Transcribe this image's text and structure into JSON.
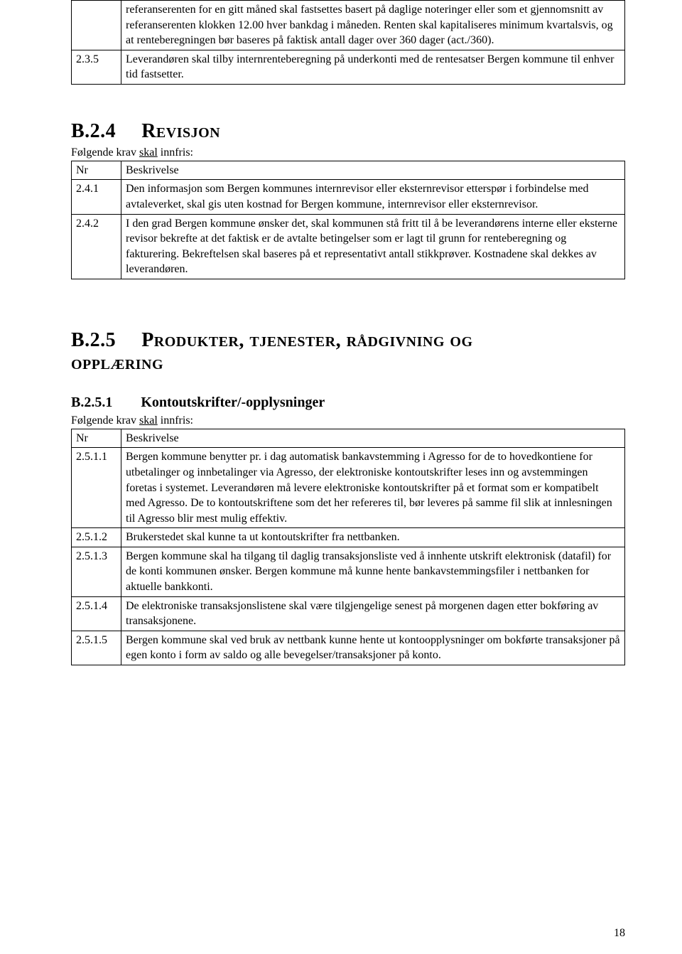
{
  "table1": {
    "rows": [
      {
        "nr": "",
        "desc": "referanserenten for en gitt måned skal fastsettes basert på daglige noteringer eller som et gjennomsnitt av referanserenten klokken 12.00 hver bankdag i måneden. Renten skal kapitaliseres minimum kvartalsvis, og at renteberegningen bør baseres på faktisk antall dager over 360 dager (act./360)."
      },
      {
        "nr": "2.3.5",
        "desc": "Leverandøren skal tilby internrenteberegning på underkonti med de rentesatser Bergen kommune til enhver tid fastsetter."
      }
    ]
  },
  "sectionB24": {
    "num": "B.2.4",
    "title": "Revisjon",
    "intro_pre": "Følgende krav ",
    "intro_u": "skal",
    "intro_post": " innfris:",
    "header_nr": "Nr",
    "header_desc": "Beskrivelse",
    "rows": [
      {
        "nr": "2.4.1",
        "desc": "Den informasjon som Bergen kommunes internrevisor eller eksternrevisor etterspør i forbindelse med avtaleverket, skal gis uten kostnad for Bergen kommune, internrevisor eller eksternrevisor."
      },
      {
        "nr": "2.4.2",
        "desc": "I den grad Bergen kommune ønsker det, skal kommunen stå fritt til å be leverandørens interne eller eksterne revisor bekrefte at det faktisk er de avtalte betingelser som er lagt til grunn for renteberegning og fakturering. Bekreftelsen skal baseres på et representativt antall stikkprøver. Kostnadene skal dekkes av leverandøren."
      }
    ]
  },
  "sectionB25": {
    "num": "B.2.5",
    "title_line1": "Produkter, tjenester, rådgivning og",
    "title_line2": "opplæring"
  },
  "sectionB251": {
    "num": "B.2.5.1",
    "title": "Kontoutskrifter/-opplysninger",
    "intro_pre": "Følgende krav ",
    "intro_u": "skal",
    "intro_post": " innfris:",
    "header_nr": "Nr",
    "header_desc": "Beskrivelse",
    "rows": [
      {
        "nr": "2.5.1.1",
        "desc": "Bergen kommune benytter pr. i dag automatisk bankavstemming i Agresso for de to hovedkontiene for utbetalinger og innbetalinger via Agresso, der elektroniske kontoutskrifter leses inn og avstemmingen foretas i systemet. Leverandøren må levere elektroniske kontoutskrifter på et format som er kompatibelt med Agresso. De to kontoutskriftene som det her refereres til, bør leveres på samme fil slik at innlesningen til Agresso blir mest mulig effektiv."
      },
      {
        "nr": "2.5.1.2",
        "desc": "Brukerstedet skal kunne ta ut kontoutskrifter fra nettbanken."
      },
      {
        "nr": "2.5.1.3",
        "desc": "Bergen kommune skal ha tilgang til daglig transaksjonsliste ved å innhente utskrift elektronisk (datafil) for de konti kommunen ønsker. Bergen kommune må kunne hente bankavstemmingsfiler i nettbanken for aktuelle bankkonti."
      },
      {
        "nr": "2.5.1.4",
        "desc": "De elektroniske transaksjonslistene skal være tilgjengelige senest på morgenen dagen etter bokføring av transaksjonene."
      },
      {
        "nr": "2.5.1.5",
        "desc": "Bergen kommune skal ved bruk av nettbank kunne hente ut kontoopplysninger om bokførte transaksjoner på egen konto i form av saldo og alle bevegelser/transaksjoner på konto."
      }
    ]
  },
  "pageNumber": "18"
}
